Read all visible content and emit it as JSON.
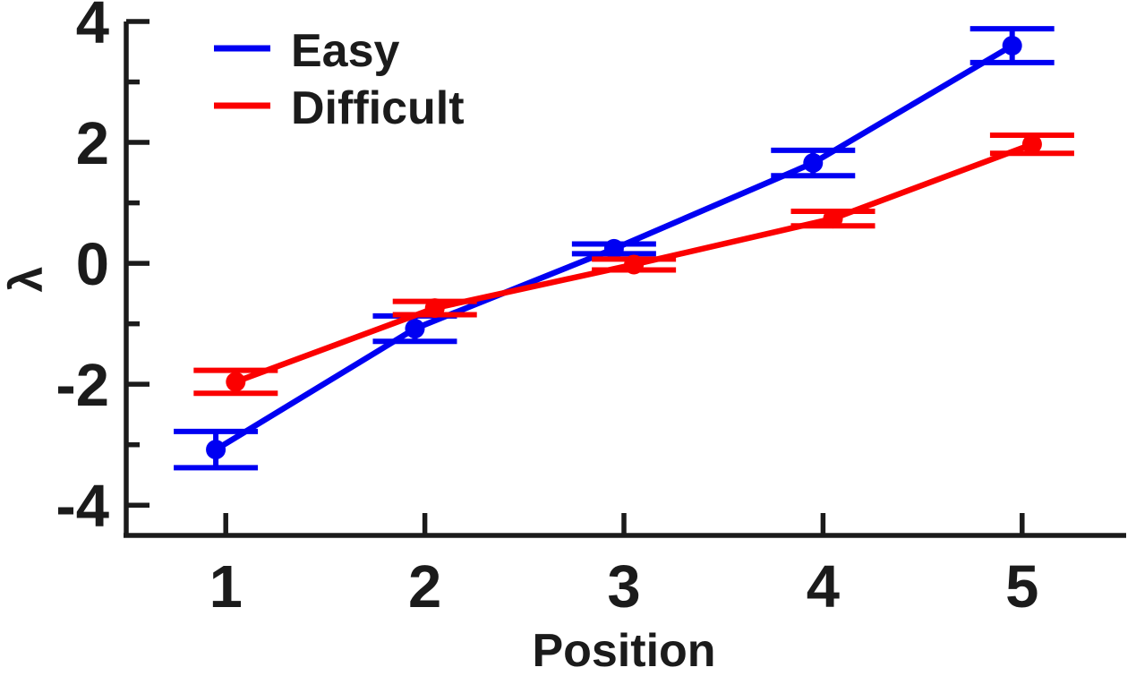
{
  "figure": {
    "background_color": "#FFFFFF",
    "text_color": "#1B1B1B",
    "axis_color": "#1B1B1B"
  },
  "chart_data": {
    "type": "line",
    "subtype": "errorbar",
    "title": "",
    "xlabel": "Position",
    "ylabel": "λ",
    "x": [
      1,
      2,
      3,
      4,
      5
    ],
    "xlim": [
      0.5,
      5.5
    ],
    "ylim": [
      -4.5,
      4
    ],
    "xticks": {
      "values": [
        1,
        2,
        3,
        4,
        5
      ],
      "labels": [
        "1",
        "2",
        "3",
        "4",
        "5"
      ]
    },
    "yticks": {
      "values": [
        -4,
        -2,
        0,
        2,
        4
      ],
      "labels": [
        "-4",
        "-2",
        "0",
        "2",
        "4"
      ]
    },
    "y_minor_ticks": [
      -3,
      -1,
      1,
      3
    ],
    "grid": false,
    "legend": {
      "position": "top-left-inside",
      "entries": [
        "Easy",
        "Difficult"
      ]
    },
    "series": [
      {
        "name": "Easy",
        "color": "#0000F2",
        "marker": "circle",
        "x_offset": -0.05,
        "values": [
          -3.08,
          -1.08,
          0.24,
          1.66,
          3.6
        ],
        "yerr": [
          0.3,
          0.21,
          0.08,
          0.21,
          0.28
        ]
      },
      {
        "name": "Difficult",
        "color": "#FB0000",
        "marker": "circle",
        "x_offset": 0.05,
        "values": [
          -1.96,
          -0.74,
          -0.02,
          0.74,
          1.97
        ],
        "yerr": [
          0.19,
          0.11,
          0.09,
          0.12,
          0.15
        ]
      }
    ]
  }
}
